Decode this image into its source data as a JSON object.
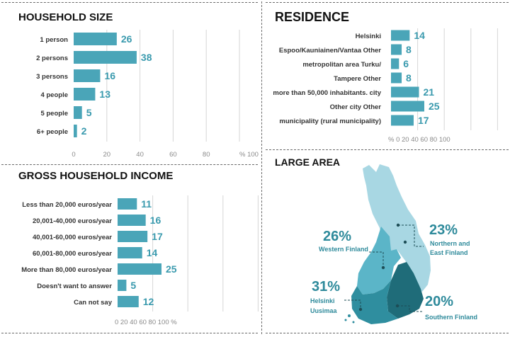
{
  "household_size": {
    "title": "HOUSEHOLD SIZE",
    "categories": [
      "1 person",
      "2 persons",
      "3 persons",
      "4 people",
      "5 people",
      "6+ people"
    ],
    "values": [
      26,
      38,
      16,
      13,
      5,
      2
    ],
    "ticks": [
      "0",
      "20",
      "40",
      "60",
      "80",
      "% 100"
    ]
  },
  "residence": {
    "title": "RESIDENCE",
    "categories": [
      "Helsinki",
      "Espoo/Kauniainen/Vantaa Other",
      "metropolitan area Turku/",
      "Tampere Other",
      "more than 50,000 inhabitants. city",
      "Other city Other",
      "municipality (rural municipality)"
    ],
    "values": [
      14,
      8,
      6,
      8,
      21,
      25,
      17
    ],
    "tick_text": "% 0 20 40 60 80 100"
  },
  "income": {
    "title": "GROSS HOUSEHOLD INCOME",
    "categories": [
      "Less than 20,000 euros/year",
      "20,001-40,000 euros/year",
      "40,001-60,000 euros/year",
      "60,001-80,000 euros/year",
      "More than 80,000 euros/year",
      "Doesn't want to answer",
      "Can not say"
    ],
    "values": [
      11,
      16,
      17,
      14,
      25,
      5,
      12
    ],
    "tick_text": "0 20 40 60 80 100 %"
  },
  "large_area": {
    "title": "LARGE AREA",
    "regions": [
      {
        "name": "Western Finland",
        "pct": "26%",
        "color": "#5bb5c8"
      },
      {
        "name": "Northern and East Finland",
        "pct": "23%",
        "color": "#a8d7e3"
      },
      {
        "name": "Helsinki Uusimaa",
        "pct": "31%",
        "color": "#2f8e9f"
      },
      {
        "name": "Southern Finland",
        "pct": "20%",
        "color": "#1f6c79"
      }
    ],
    "labels": {
      "western_pct": "26%",
      "western_l1": "Western Finland",
      "northern_pct": "23%",
      "northern_l1": "Northern and",
      "northern_l2": "East Finland",
      "helsinki_pct": "31%",
      "helsinki_l1": "Helsinki",
      "helsinki_l2": "Uusimaa",
      "southern_pct": "20%",
      "southern_l1": "Southern Finland"
    }
  },
  "chart_data": [
    {
      "type": "bar",
      "title": "HOUSEHOLD SIZE",
      "categories": [
        "1 person",
        "2 persons",
        "3 persons",
        "4 people",
        "5 people",
        "6+ people"
      ],
      "values": [
        26,
        38,
        16,
        13,
        5,
        2
      ],
      "xlim": [
        0,
        100
      ],
      "xlabel": "%",
      "orientation": "horizontal",
      "grid": true
    },
    {
      "type": "bar",
      "title": "RESIDENCE",
      "categories": [
        "Helsinki",
        "Espoo/Kauniainen/Vantaa Other",
        "metropolitan area Turku/",
        "Tampere Other",
        "more than 50,000 inhabitants. city",
        "Other city Other",
        "municipality (rural municipality)"
      ],
      "values": [
        14,
        8,
        6,
        8,
        21,
        25,
        17
      ],
      "xlim": [
        0,
        100
      ],
      "xlabel": "%",
      "orientation": "horizontal",
      "grid": true
    },
    {
      "type": "bar",
      "title": "GROSS HOUSEHOLD INCOME",
      "categories": [
        "Less than 20,000 euros/year",
        "20,001-40,000 euros/year",
        "40,001-60,000 euros/year",
        "60,001-80,000 euros/year",
        "More than 80,000 euros/year",
        "Doesn't want to answer",
        "Can not say"
      ],
      "values": [
        11,
        16,
        17,
        14,
        25,
        5,
        12
      ],
      "xlim": [
        0,
        100
      ],
      "xlabel": "%",
      "orientation": "horizontal",
      "grid": true
    },
    {
      "type": "pie",
      "title": "LARGE AREA",
      "categories": [
        "Western Finland",
        "Northern and East Finland",
        "Helsinki Uusimaa",
        "Southern Finland"
      ],
      "values": [
        26,
        23,
        31,
        20
      ]
    }
  ]
}
